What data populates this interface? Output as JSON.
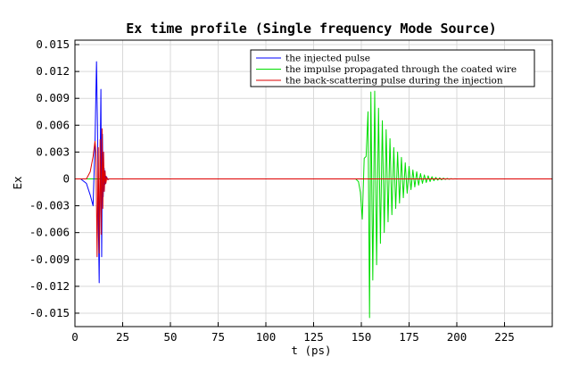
{
  "chart_data": {
    "type": "line",
    "title": "Ex time profile (Single frequency Mode Source)",
    "xlabel": "t (ps)",
    "ylabel": "Ex",
    "xlim": [
      0,
      250
    ],
    "ylim": [
      -0.0165,
      0.0155
    ],
    "grid": true,
    "legend_position": "top-right",
    "xticks": [
      0,
      25,
      50,
      75,
      100,
      125,
      150,
      175,
      200,
      225
    ],
    "xtick_labels": [
      "0",
      "25",
      "50",
      "75",
      "100",
      "125",
      "150",
      "175",
      "200",
      "225"
    ],
    "yticks": [
      0.015,
      0.012,
      0.009,
      0.006,
      0.003,
      0,
      -0.003,
      -0.006,
      -0.009,
      -0.012,
      -0.015
    ],
    "ytick_labels": [
      "0.015",
      "0.012",
      "0.009",
      "0.006",
      "0.003",
      "0",
      "-0.003",
      "-0.006",
      "-0.009",
      "-0.012",
      "-0.015"
    ],
    "series": [
      {
        "name": "the injected pulse",
        "color": "#0000ff",
        "x": [
          0,
          3,
          6,
          8,
          9.5,
          10.5,
          11.3,
          11.8,
          12.2,
          12.7,
          13.1,
          13.6,
          14.0,
          14.4,
          14.8,
          15.3,
          15.8,
          16.3,
          17,
          18,
          20,
          30,
          50,
          100,
          150,
          200,
          250
        ],
        "y": [
          0,
          0,
          -0.0005,
          -0.0018,
          -0.003,
          0.004,
          0.0131,
          0.006,
          -0.004,
          -0.0116,
          0.0002,
          0.01,
          -0.0087,
          0.005,
          -0.002,
          0.0012,
          -0.0006,
          0.0003,
          0,
          0,
          0,
          0,
          0,
          0,
          0,
          0,
          0
        ]
      },
      {
        "name": "the impulse propagated through the coated wire",
        "color": "#00dd00",
        "x": [
          0,
          100,
          145,
          147,
          148.5,
          149.5,
          150.5,
          151.5,
          152.5,
          153.5,
          154.3,
          155.0,
          156.0,
          157.0,
          158.0,
          159.0,
          160.0,
          161.0,
          162.0,
          163.0,
          164.0,
          165.0,
          166.0,
          167.0,
          168.0,
          169.0,
          170.0,
          171.0,
          172.0,
          173.0,
          174.0,
          175.0,
          176.0,
          177.0,
          178.0,
          179.0,
          180.0,
          181.0,
          182.0,
          183.0,
          184.0,
          185.0,
          186.0,
          187.0,
          188.0,
          189.0,
          190.0,
          191.0,
          192.0,
          193.0,
          194.0,
          195.0,
          196.0,
          197.0,
          198.0,
          199.0,
          200.0,
          202,
          205,
          210,
          250
        ],
        "y": [
          0,
          0,
          0,
          0,
          -0.0003,
          -0.0015,
          -0.0045,
          0.0023,
          0.0025,
          0.0075,
          -0.0155,
          0.0097,
          -0.0113,
          0.0098,
          -0.0096,
          0.0079,
          -0.0072,
          0.0065,
          -0.006,
          0.0055,
          -0.0048,
          0.0045,
          -0.004,
          0.0035,
          -0.0033,
          0.003,
          -0.0027,
          0.0024,
          -0.0021,
          0.0018,
          -0.0016,
          0.0014,
          -0.0012,
          0.001,
          -0.0009,
          0.0008,
          -0.0007,
          0.0006,
          -0.0005,
          0.00045,
          -0.0004,
          0.00035,
          -0.0003,
          0.00025,
          -0.0002,
          0.00017,
          -0.00014,
          0.00012,
          -0.0001,
          8e-05,
          -6e-05,
          5e-05,
          -4e-05,
          3e-05,
          -2e-05,
          1e-05,
          0,
          0,
          0,
          0,
          0
        ]
      },
      {
        "name": "the back-scattering pulse during the injection",
        "color": "#dd0000",
        "x": [
          0,
          6,
          8,
          9.5,
          10.5,
          11.0,
          11.6,
          12.2,
          12.7,
          13.2,
          13.7,
          14.2,
          14.6,
          15.0,
          15.4,
          15.8,
          16.2,
          16.7,
          17.2,
          18,
          20,
          50,
          100,
          150,
          200,
          250
        ],
        "y": [
          0,
          0,
          0.0008,
          0.0025,
          0.0042,
          0.003,
          -0.0087,
          0.0035,
          -0.0083,
          0.0044,
          -0.0062,
          0.0056,
          -0.0033,
          0.003,
          -0.0014,
          0.0009,
          -0.0005,
          0.0002,
          -0.0001,
          0,
          0,
          0,
          0,
          0,
          0,
          0
        ]
      }
    ]
  }
}
